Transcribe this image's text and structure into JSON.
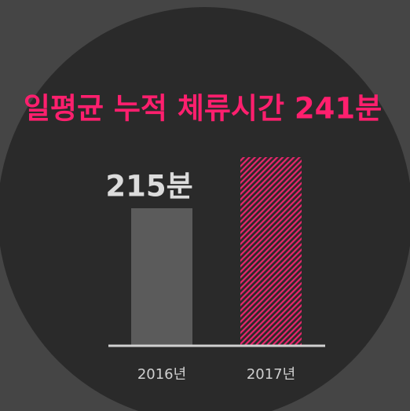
{
  "chart_data": {
    "type": "bar",
    "title": "일평균 누적 체류시간 241분",
    "categories": [
      "2016년",
      "2017년"
    ],
    "values": [
      215,
      241
    ],
    "value_labels": [
      "215분",
      null
    ],
    "colors": [
      "#5b5b5b",
      "#e8266c"
    ],
    "hatched": [
      false,
      true
    ],
    "ylim": [
      145,
      261
    ]
  }
}
